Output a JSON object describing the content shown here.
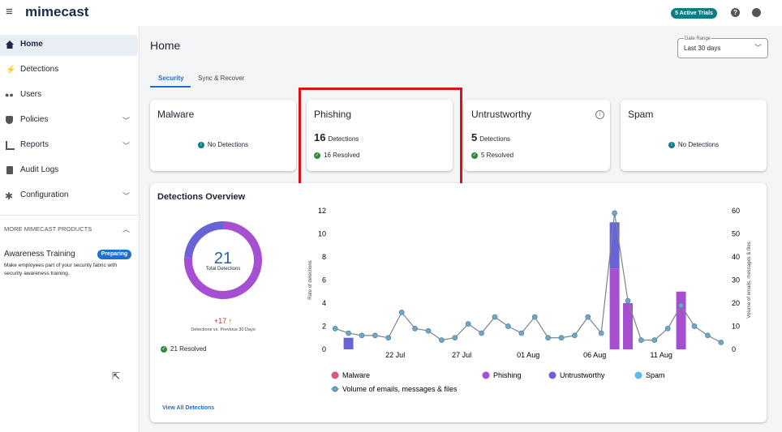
{
  "header": {
    "brand": "mimecast",
    "trials": "5 Active Trials"
  },
  "nav": {
    "items": [
      "Home",
      "Detections",
      "Users",
      "Policies",
      "Reports",
      "Audit Logs",
      "Configuration"
    ],
    "section": "MORE MIMECAST PRODUCTS",
    "product": {
      "name": "Awareness Training",
      "badge": "Preparing",
      "description": "Make employees part of your security fabric with security awareness training."
    }
  },
  "page": {
    "title": "Home",
    "date_range": {
      "label": "Date Range",
      "value": "Last 30 days"
    },
    "tabs": [
      "Security",
      "Sync & Recover"
    ]
  },
  "cards": [
    {
      "title": "Malware",
      "status": "No Detections"
    },
    {
      "title": "Phishing",
      "count": 16,
      "count_label": "Detections",
      "resolved": "16 Resolved"
    },
    {
      "title": "Untrustworthy",
      "count": 5,
      "count_label": "Detections",
      "resolved": "5 Resolved"
    },
    {
      "title": "Spam",
      "status": "No Detections"
    }
  ],
  "overview": {
    "title": "Detections Overview",
    "total": 21,
    "total_label": "Total Detections",
    "change": "+17 ↑",
    "change_label": "Detections vs. Previous 30 Days",
    "resolved": "21 Resolved",
    "link": "View All Detections"
  },
  "chart_data": {
    "type": "bar",
    "stacked": true,
    "categories": [
      null,
      null,
      null,
      null,
      null,
      "22 Jul",
      null,
      null,
      null,
      null,
      "27 Jul",
      null,
      null,
      null,
      null,
      "01 Aug",
      null,
      null,
      null,
      null,
      "06 Aug",
      null,
      null,
      null,
      null,
      "11 Aug",
      null,
      null,
      null,
      null
    ],
    "y_label": "Rate of detections",
    "y2_label": "Volume of emails, messages & files",
    "ylim": [
      0,
      12
    ],
    "yticks": [
      0,
      2,
      4,
      6,
      8,
      10,
      12
    ],
    "y2lim": [
      0,
      60
    ],
    "y2ticks": [
      0,
      10,
      20,
      30,
      40,
      50,
      60
    ],
    "series": [
      {
        "name": "Malware",
        "color": "#d9577f",
        "values": [
          0,
          0,
          0,
          0,
          0,
          0,
          0,
          0,
          0,
          0,
          0,
          0,
          0,
          0,
          0,
          0,
          0,
          0,
          0,
          0,
          0,
          0,
          0,
          0,
          0,
          0,
          0,
          0,
          0,
          0
        ]
      },
      {
        "name": "Phishing",
        "color": "#a64fd0",
        "values": [
          0,
          0,
          0,
          0,
          0,
          0,
          0,
          0,
          0,
          0,
          0,
          0,
          0,
          0,
          0,
          0,
          0,
          0,
          0,
          0,
          0,
          7,
          4,
          0,
          0,
          0,
          5,
          0,
          0,
          0
        ]
      },
      {
        "name": "Untrustworthy",
        "color": "#6a63d6",
        "values": [
          0,
          1,
          0,
          0,
          0,
          0,
          0,
          0,
          0,
          0,
          0,
          0,
          0,
          0,
          0,
          0,
          0,
          0,
          0,
          0,
          0,
          4,
          0,
          0,
          0,
          0,
          0,
          0,
          0,
          0
        ]
      },
      {
        "name": "Spam",
        "color": "#5bb8f2",
        "values": [
          0,
          0,
          0,
          0,
          0,
          0,
          0,
          0,
          0,
          0,
          0,
          0,
          0,
          0,
          0,
          0,
          0,
          0,
          0,
          0,
          0,
          0,
          0,
          0,
          0,
          0,
          0,
          0,
          0,
          0
        ]
      },
      {
        "name": "Volume of emails, messages & files",
        "type": "line",
        "axis": "y2",
        "color": "#6fa8c7",
        "values": [
          9,
          7,
          6,
          6,
          5,
          16,
          9,
          8,
          4,
          5,
          11,
          7,
          14,
          10,
          7,
          14,
          5,
          5,
          6,
          14,
          7,
          59,
          21,
          4,
          4,
          9,
          19,
          10,
          6,
          3
        ]
      }
    ]
  }
}
